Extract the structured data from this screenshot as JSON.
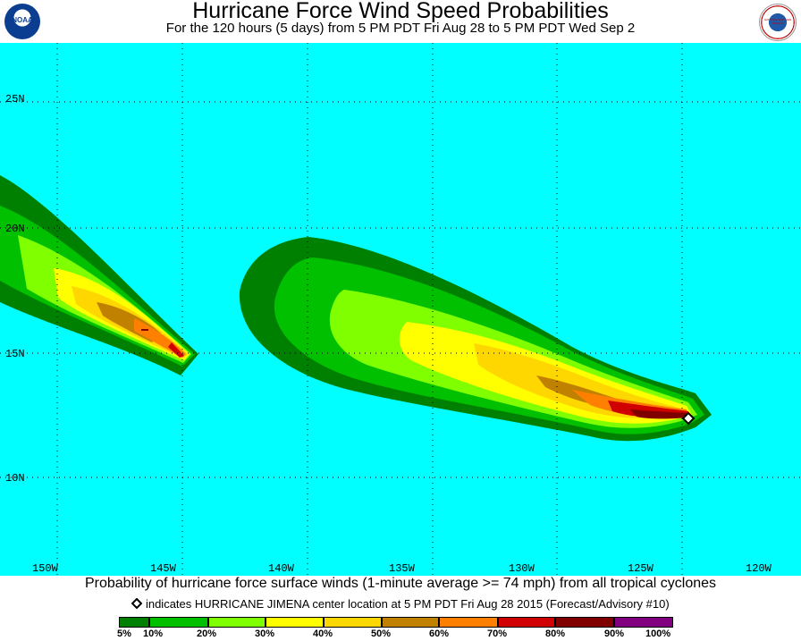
{
  "header": {
    "title": "Hurricane Force Wind Speed Probabilities",
    "subtitle": "For the 120 hours (5 days) from 5 PM PDT Fri Aug 28 to 5 PM PDT Wed Sep 2",
    "left_logo_text": "NOAA",
    "right_logo_text": "NATIONAL WEATHER SERVICE"
  },
  "map": {
    "background_color": "#00ffff",
    "lat_labels": [
      "25N",
      "20N",
      "15N",
      "10N"
    ],
    "lon_labels": [
      "150W",
      "145W",
      "140W",
      "135W",
      "130W",
      "125W",
      "120W"
    ],
    "storm_marker_icon": "diamond-icon"
  },
  "caption": {
    "main": "Probability of hurricane force surface winds (1-minute average >= 74 mph) from all tropical cyclones",
    "marker_note": "indicates HURRICANE JIMENA center location at 5 PM PDT Fri Aug 28 2015 (Forecast/Advisory #10)"
  },
  "legend": {
    "colors": [
      "#008000",
      "#00c000",
      "#80ff00",
      "#ffff00",
      "#ffd700",
      "#c08000",
      "#ff8000",
      "#d00000",
      "#800000",
      "#800080"
    ],
    "labels": [
      "5%",
      "10%",
      "20%",
      "30%",
      "40%",
      "50%",
      "60%",
      "70%",
      "80%",
      "90%",
      "100%"
    ]
  }
}
